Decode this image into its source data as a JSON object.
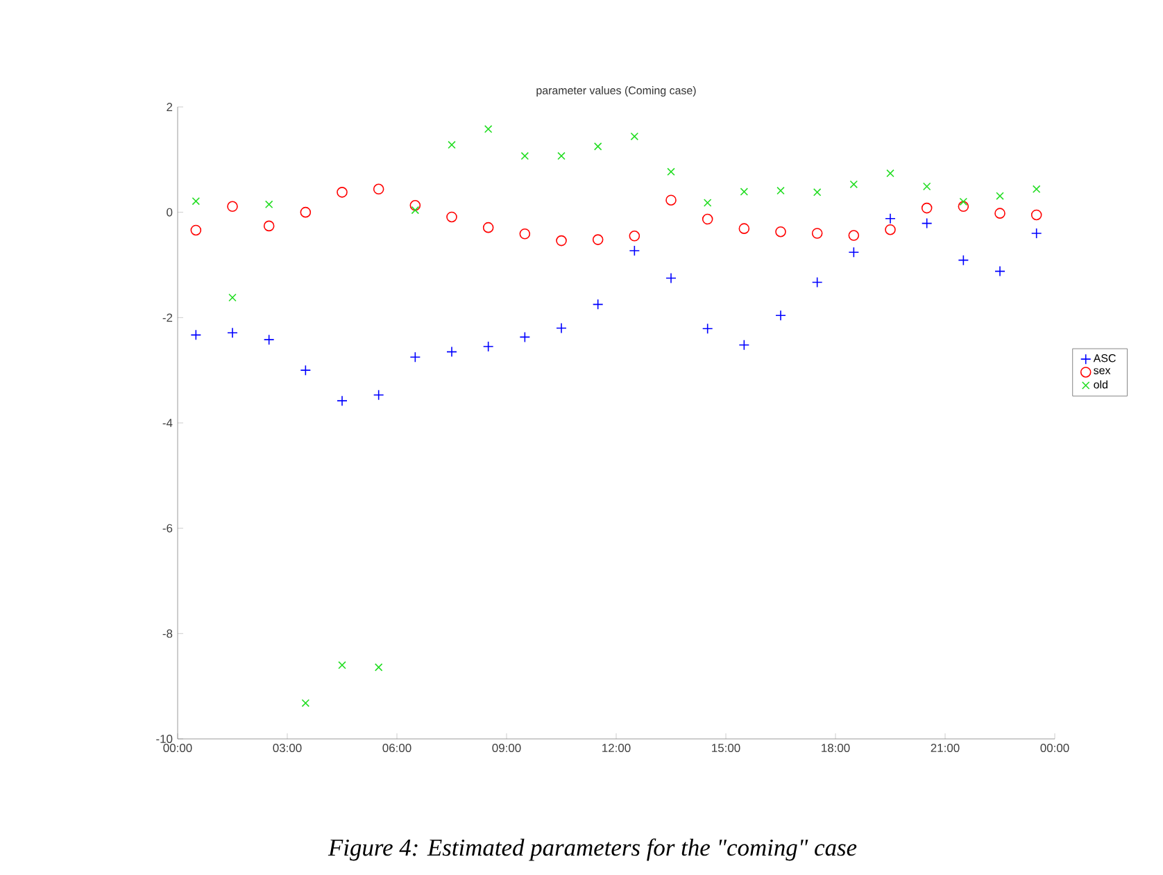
{
  "chart_data": {
    "type": "scatter",
    "title": "parameter values (Coming case)",
    "x": [
      0.5,
      1.5,
      2.5,
      3.5,
      4.5,
      5.5,
      6.5,
      7.5,
      8.5,
      9.5,
      10.5,
      11.5,
      12.5,
      13.5,
      14.5,
      15.5,
      16.5,
      17.5,
      18.5,
      19.5,
      20.5,
      21.5,
      22.5,
      23.5
    ],
    "series": [
      {
        "name": "ASC",
        "color": "#0000ff",
        "marker": "plus",
        "values": [
          -2.33,
          -2.29,
          -2.42,
          -3.0,
          -3.58,
          -3.47,
          -2.75,
          -2.65,
          -2.55,
          -2.37,
          -2.2,
          -1.75,
          -0.73,
          -1.25,
          -2.21,
          -2.52,
          -1.96,
          -1.33,
          -0.76,
          -0.12,
          -0.21,
          -0.91,
          -1.12,
          -0.4
        ]
      },
      {
        "name": "sex",
        "color": "#ff0000",
        "marker": "circle",
        "values": [
          -0.34,
          0.11,
          -0.26,
          0.0,
          0.38,
          0.44,
          0.13,
          -0.09,
          -0.29,
          -0.41,
          -0.54,
          -0.52,
          -0.45,
          0.23,
          -0.13,
          -0.31,
          -0.37,
          -0.4,
          -0.44,
          -0.33,
          0.08,
          0.11,
          -0.02,
          -0.05
        ]
      },
      {
        "name": "old",
        "color": "#22dd22",
        "marker": "cross",
        "values": [
          0.21,
          -1.62,
          0.15,
          -9.32,
          -8.6,
          -8.64,
          0.04,
          1.28,
          1.58,
          1.07,
          1.07,
          1.25,
          1.44,
          0.77,
          0.18,
          0.39,
          0.41,
          0.38,
          0.53,
          0.74,
          0.49,
          0.2,
          0.31,
          0.44
        ]
      }
    ],
    "xlim": [
      0,
      24
    ],
    "xticks": [
      {
        "value": 0,
        "label": "00:00"
      },
      {
        "value": 3,
        "label": "03:00"
      },
      {
        "value": 6,
        "label": "06:00"
      },
      {
        "value": 9,
        "label": "09:00"
      },
      {
        "value": 12,
        "label": "12:00"
      },
      {
        "value": 15,
        "label": "15:00"
      },
      {
        "value": 18,
        "label": "18:00"
      },
      {
        "value": 21,
        "label": "21:00"
      },
      {
        "value": 24,
        "label": "00:00"
      }
    ],
    "ylim": [
      -10,
      2
    ],
    "yticks": [
      -10,
      -8,
      -6,
      -4,
      -2,
      0,
      2
    ],
    "grid": false,
    "legend": "right",
    "annotations": [
      "Figure 4: Estimated parameters for the \"coming\" case"
    ]
  }
}
